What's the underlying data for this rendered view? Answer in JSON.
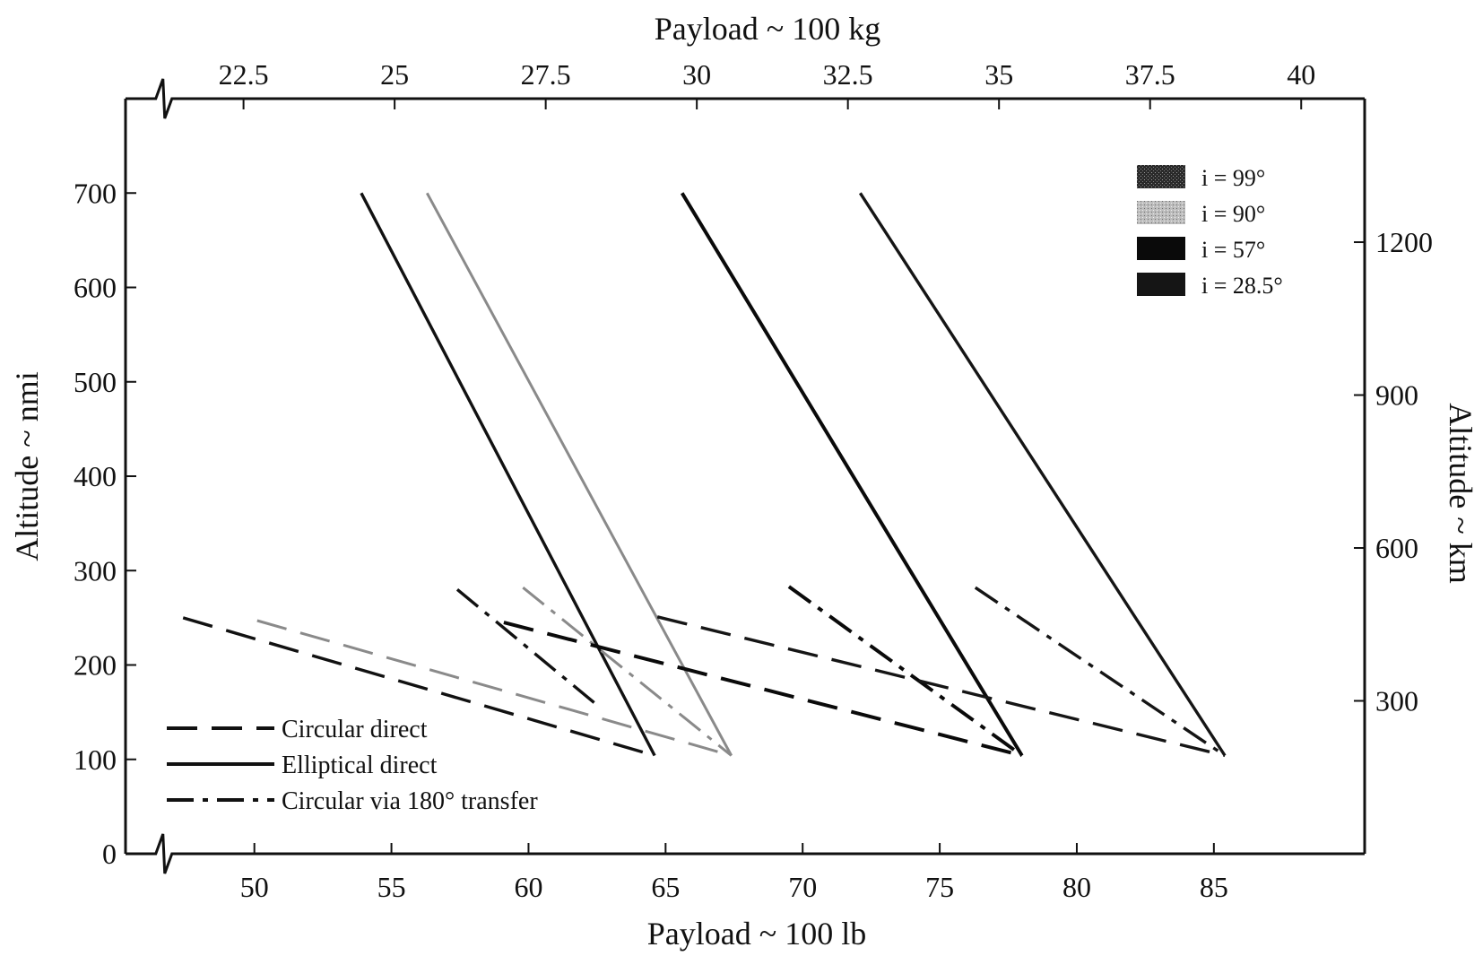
{
  "chart_data": {
    "type": "line",
    "title": "",
    "x_bottom": {
      "label": "Payload ~ 100 lb",
      "ticks": [
        50,
        55,
        60,
        65,
        70,
        75,
        80,
        85
      ],
      "tick_labels": [
        "50",
        "55",
        "60",
        "65",
        "70",
        "75",
        "80",
        "85"
      ],
      "range": [
        45.3,
        90.5
      ],
      "axis_break_near": 46.6
    },
    "x_top": {
      "label": "Payload ~ 100 kg",
      "ticks": [
        22.5,
        25,
        27.5,
        30,
        32.5,
        35,
        37.5,
        40
      ],
      "tick_labels": [
        "22.5",
        "25",
        "27.5",
        "30",
        "32.5",
        "35",
        "37.5",
        "40"
      ],
      "axis_break_near": 21.2
    },
    "y_left": {
      "label": "Altitude ~ nmi",
      "ticks": [
        0,
        100,
        200,
        300,
        400,
        500,
        600,
        700
      ],
      "tick_labels": [
        "0",
        "100",
        "200",
        "300",
        "400",
        "500",
        "600",
        "700"
      ],
      "range": [
        0,
        800
      ]
    },
    "y_right": {
      "label": "Altitude ~ km",
      "ticks": [
        300,
        600,
        900,
        1200
      ],
      "tick_labels": [
        "300",
        "600",
        "900",
        "1200"
      ]
    },
    "inclination_legend": [
      {
        "label": "i = 99°",
        "color": "#3a3a3a",
        "fill": "textured-dark"
      },
      {
        "label": "i = 90°",
        "color": "#9a9a9a",
        "fill": "textured-light"
      },
      {
        "label": "i = 57°",
        "color": "#0a0a0a",
        "fill": "solid"
      },
      {
        "label": "i = 28.5°",
        "color": "#151515",
        "fill": "solid"
      }
    ],
    "style_legend": [
      {
        "label": "Circular direct",
        "dash": "dashed"
      },
      {
        "label": "Elliptical direct",
        "dash": "solid"
      },
      {
        "label": "Circular via 180° transfer",
        "dash": "dashdot"
      }
    ],
    "series": [
      {
        "inclination": "i = 99°",
        "style": "Circular direct",
        "color": "#111111",
        "width": 3.4,
        "points": [
          [
            47.4,
            250
          ],
          [
            64.6,
            104
          ]
        ]
      },
      {
        "inclination": "i = 99°",
        "style": "Elliptical direct",
        "color": "#111111",
        "width": 3.4,
        "points": [
          [
            53.9,
            700
          ],
          [
            64.6,
            104
          ]
        ]
      },
      {
        "inclination": "i = 99°",
        "style": "Circular via 180° transfer",
        "color": "#111111",
        "width": 3.4,
        "points": [
          [
            57.4,
            280
          ],
          [
            62.4,
            160
          ]
        ]
      },
      {
        "inclination": "i = 90°",
        "style": "Circular direct",
        "color": "#8a8a8a",
        "width": 3,
        "points": [
          [
            50.1,
            247
          ],
          [
            67.4,
            104
          ]
        ]
      },
      {
        "inclination": "i = 90°",
        "style": "Elliptical direct",
        "color": "#8a8a8a",
        "width": 3,
        "points": [
          [
            56.3,
            700
          ],
          [
            67.4,
            104
          ]
        ]
      },
      {
        "inclination": "i = 90°",
        "style": "Circular via 180° transfer",
        "color": "#8a8a8a",
        "width": 3,
        "points": [
          [
            59.8,
            282
          ],
          [
            67.4,
            104
          ]
        ]
      },
      {
        "inclination": "i = 57°",
        "style": "Circular direct",
        "color": "#0a0a0a",
        "width": 4,
        "points": [
          [
            59.1,
            245
          ],
          [
            78,
            104
          ]
        ]
      },
      {
        "inclination": "i = 57°",
        "style": "Elliptical direct",
        "color": "#0a0a0a",
        "width": 4,
        "points": [
          [
            65.6,
            700
          ],
          [
            78,
            104
          ]
        ]
      },
      {
        "inclination": "i = 57°",
        "style": "Circular via 180° transfer",
        "color": "#0a0a0a",
        "width": 4,
        "points": [
          [
            69.5,
            283
          ],
          [
            78,
            104
          ]
        ]
      },
      {
        "inclination": "i = 28.5°",
        "style": "Circular direct",
        "color": "#151515",
        "width": 3.4,
        "points": [
          [
            64.7,
            251
          ],
          [
            85.4,
            104
          ]
        ]
      },
      {
        "inclination": "i = 28.5°",
        "style": "Elliptical direct",
        "color": "#151515",
        "width": 3.4,
        "points": [
          [
            72.1,
            700
          ],
          [
            85.4,
            104
          ]
        ]
      },
      {
        "inclination": "i = 28.5°",
        "style": "Circular via 180° transfer",
        "color": "#151515",
        "width": 3.4,
        "points": [
          [
            76.3,
            282
          ],
          [
            85.4,
            104
          ]
        ]
      }
    ]
  }
}
